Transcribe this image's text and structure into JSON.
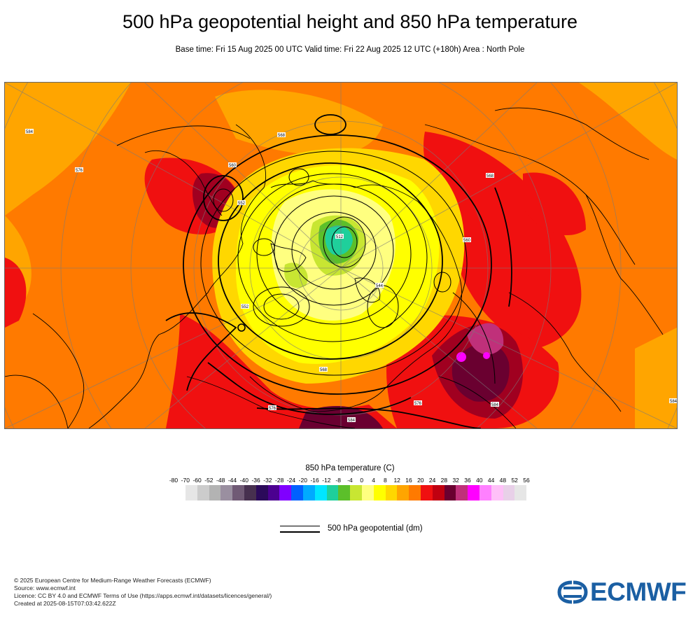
{
  "title": "500 hPa geopotential height and 850 hPa temperature",
  "subtitle": "Base time: Fri 15 Aug 2025 00 UTC Valid time: Fri 22 Aug 2025 12 UTC (+180h) Area : North Pole",
  "map": {
    "area": "North Pole",
    "colors": {
      "warm_orange": "#ff7a00",
      "light_orange": "#ffa500",
      "red": "#f01010",
      "dark_red": "#a00020",
      "maroon": "#6a0030",
      "yellow": "#ffff00",
      "pale_yellow": "#ffff80",
      "yellow_green": "#c8e632",
      "green": "#5cbf2a",
      "teal": "#1fcf9b",
      "magenta": "#ff00ff",
      "pink": "#c0307a"
    },
    "contour_labels": [
      "512",
      "544",
      "552",
      "560",
      "568",
      "576",
      "584"
    ]
  },
  "legend": {
    "title": "850 hPa temperature (C)",
    "ticks": [
      "-80",
      "-70",
      "-60",
      "-52",
      "-48",
      "-44",
      "-40",
      "-36",
      "-32",
      "-28",
      "-24",
      "-20",
      "-16",
      "-12",
      "-8",
      "-4",
      "0",
      "4",
      "8",
      "12",
      "16",
      "20",
      "24",
      "28",
      "32",
      "36",
      "40",
      "44",
      "48",
      "52",
      "56"
    ],
    "colors": [
      "#e6e6e6",
      "#cccccc",
      "#b3b3b3",
      "#9a8fa0",
      "#705a75",
      "#47304f",
      "#2b0a5a",
      "#4b0090",
      "#8000ff",
      "#0060ff",
      "#00aaff",
      "#00e6ff",
      "#1fcf9b",
      "#5cbf2a",
      "#c8e632",
      "#ffff80",
      "#ffff00",
      "#ffd700",
      "#ffa500",
      "#ff7a00",
      "#f01010",
      "#c00010",
      "#6a0030",
      "#c0307a",
      "#ff00ff",
      "#ff80ff",
      "#ffc0f8",
      "#e8d0e8",
      "#e6e6e6"
    ],
    "line_label": "500 hPa geopotential (dm)"
  },
  "credits": {
    "line1": "© 2025 European Centre for Medium-Range Weather Forecasts (ECMWF)",
    "line2": "Source: www.ecmwf.int",
    "line3": "Licence: CC BY 4.0 and ECMWF Terms of Use (https://apps.ecmwf.int/datasets/licences/general/)",
    "line4": "Created at 2025-08-15T07:03:42.622Z"
  },
  "logo": {
    "text": "ECMWF",
    "color": "#1b5fa3"
  }
}
